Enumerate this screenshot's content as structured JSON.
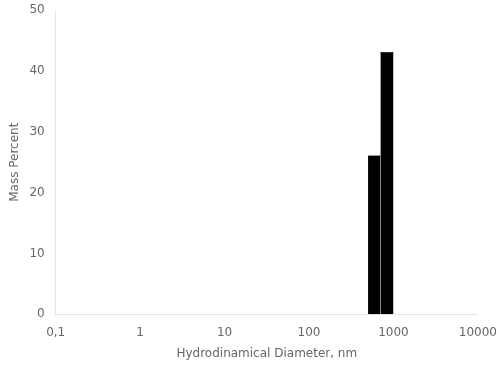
{
  "chart_data": {
    "type": "histogram",
    "xlabel": "Hydrodinamical Diameter, nm",
    "ylabel": "Mass Percent",
    "bins": [
      500,
      700,
      1000
    ],
    "values": [
      26.0,
      43.0
    ],
    "color": "#000000",
    "log": "x",
    "xlim": [
      0.1,
      10000
    ],
    "xticks": [
      {
        "value": 0.1,
        "label": "0,1"
      },
      1,
      10,
      100,
      1000,
      10000
    ],
    "ylim": [
      0,
      50
    ],
    "yticks": [
      0,
      10,
      20,
      30,
      40,
      50
    ],
    "grid": false,
    "legend": false
  }
}
